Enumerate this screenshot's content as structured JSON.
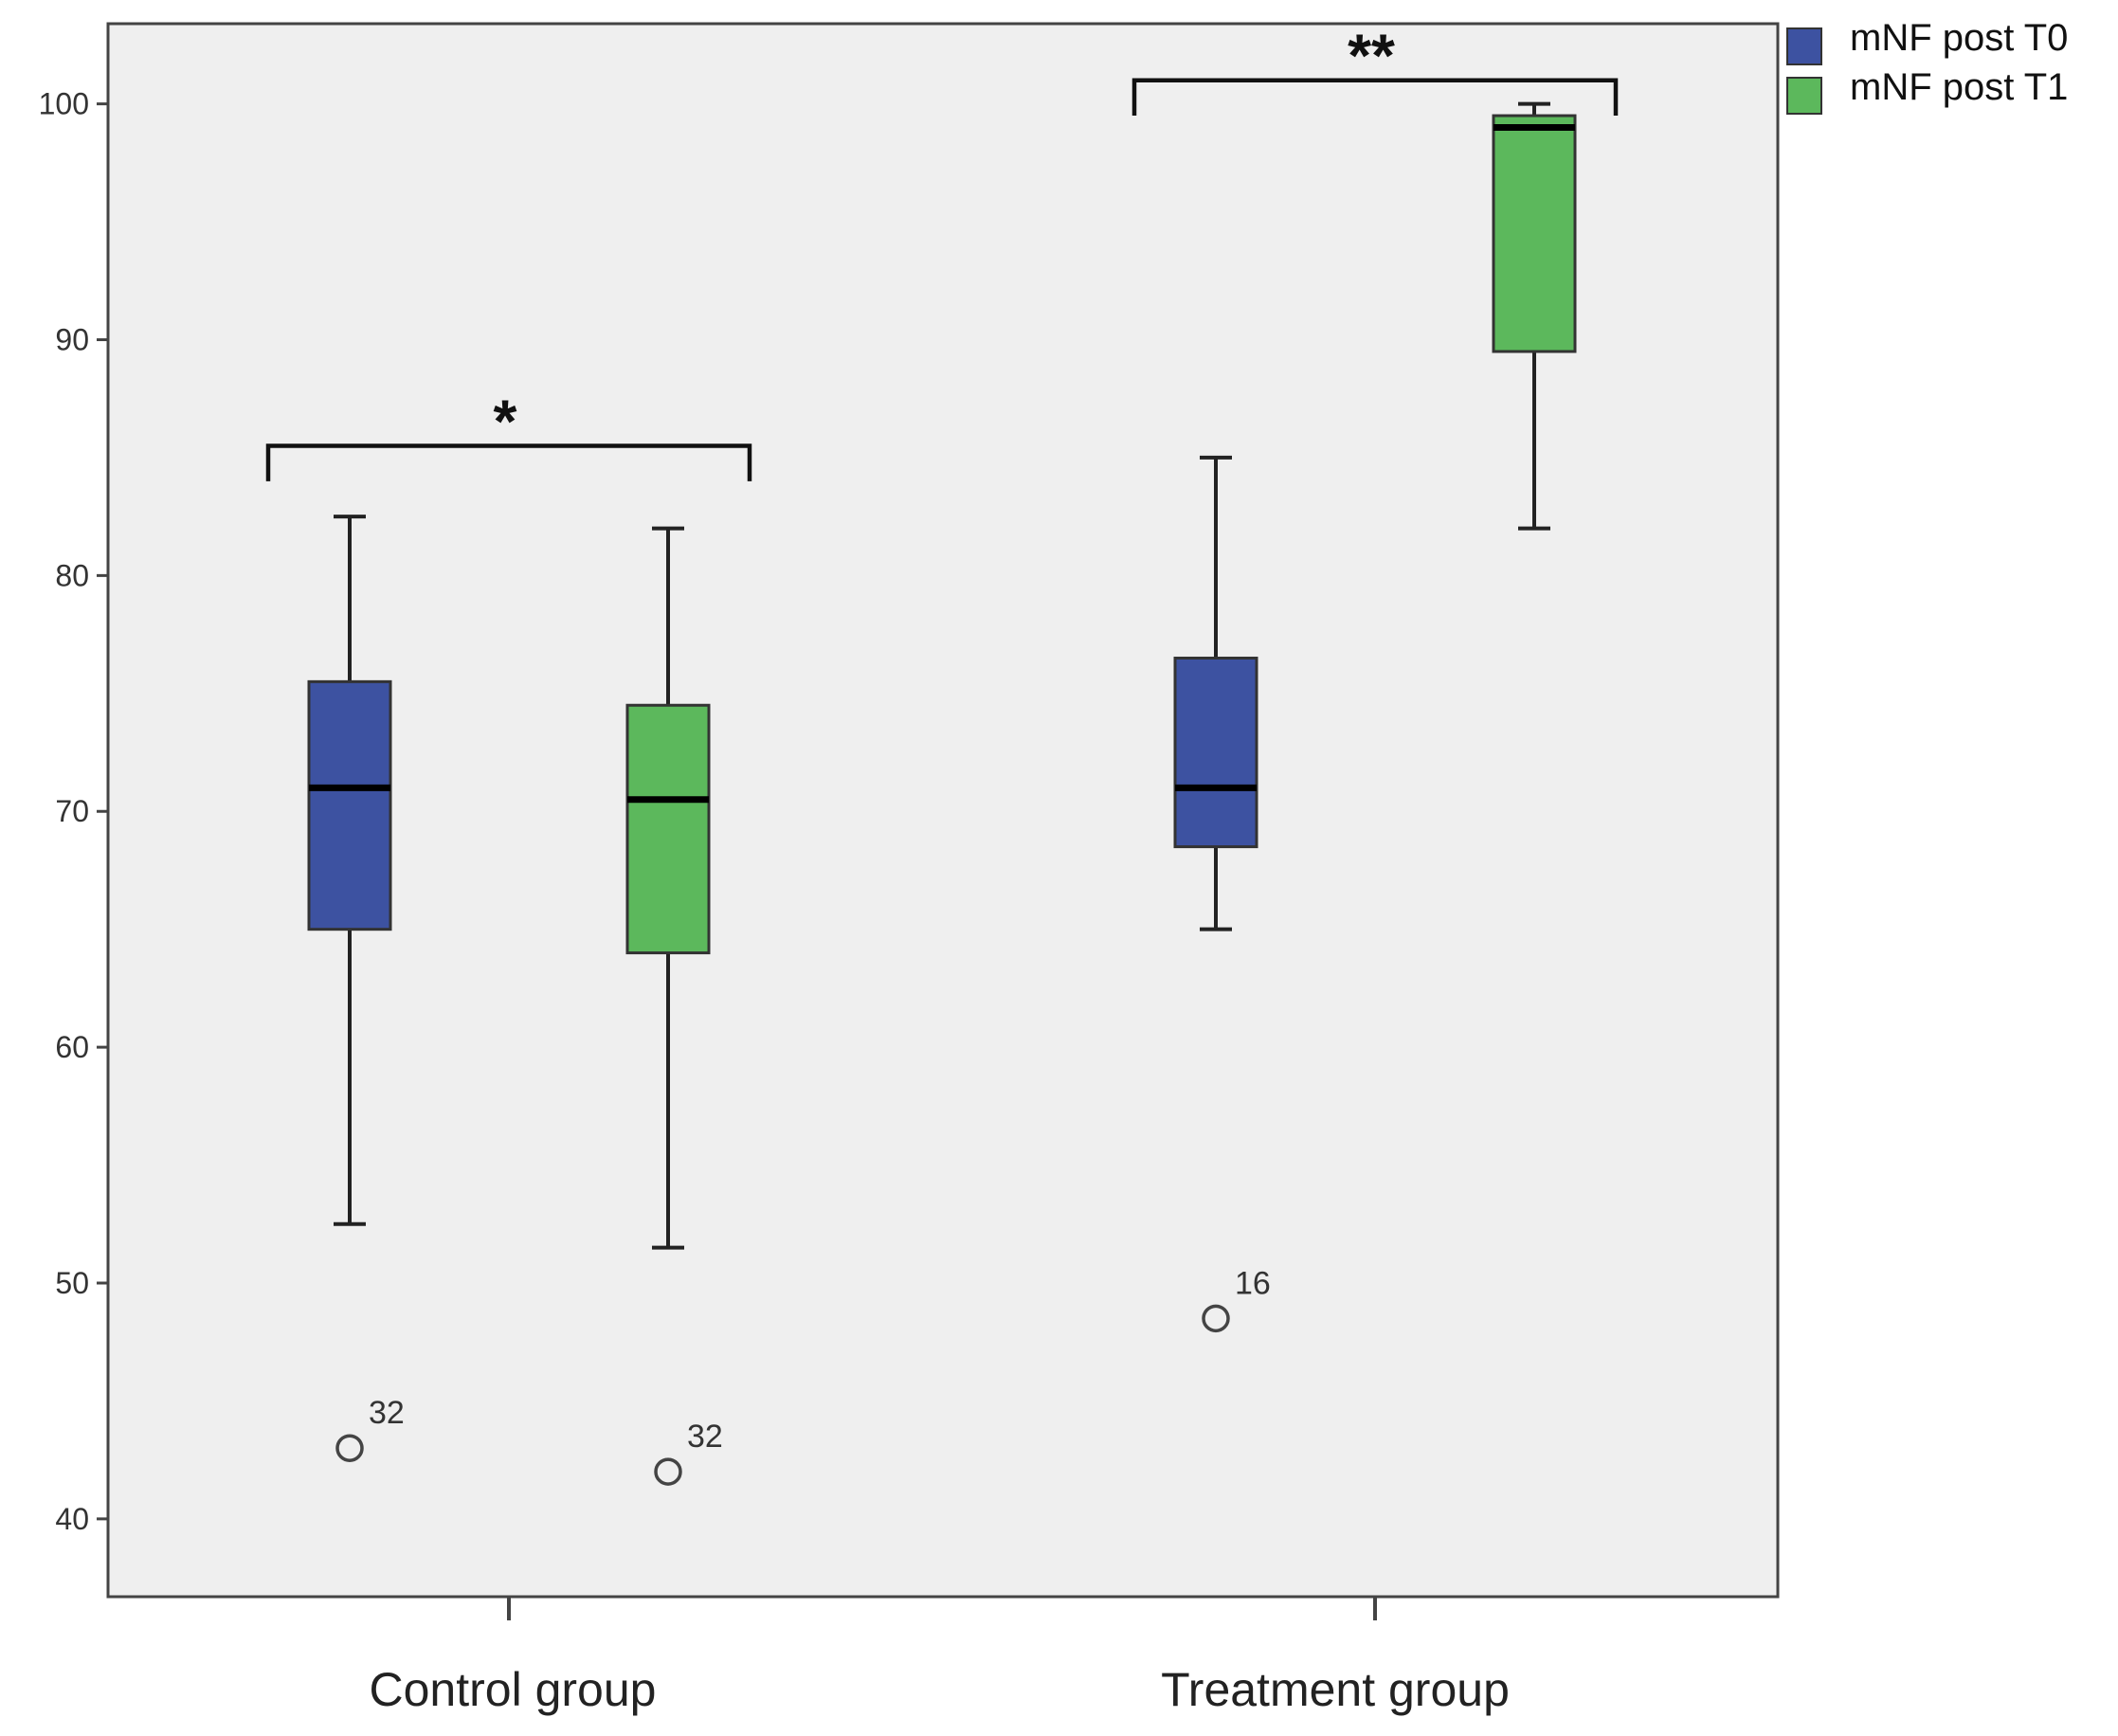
{
  "chart_data": {
    "type": "boxplot",
    "title": "",
    "xlabel": "",
    "ylabel": "",
    "ylim": [
      36.7,
      103.4
    ],
    "yticks": [
      40,
      50,
      60,
      70,
      80,
      90,
      100
    ],
    "grid": false,
    "legend_position": "outside-top-right",
    "categories": [
      "Control group",
      "Treatment group"
    ],
    "series": [
      {
        "name": "mNF post T0",
        "color": "#3d52a1",
        "boxes": [
          {
            "category": "Control group",
            "whisker_low": 52.5,
            "q1": 65,
            "median": 71,
            "q3": 75.5,
            "whisker_high": 82.5,
            "outliers": [
              {
                "value": 43,
                "label": "32"
              }
            ]
          },
          {
            "category": "Treatment group",
            "whisker_low": 65,
            "q1": 68.5,
            "median": 71,
            "q3": 76.5,
            "whisker_high": 85,
            "outliers": [
              {
                "value": 48.5,
                "label": "16"
              }
            ]
          }
        ]
      },
      {
        "name": "mNF post T1",
        "color": "#5cb85c",
        "boxes": [
          {
            "category": "Control group",
            "whisker_low": 51.5,
            "q1": 64,
            "median": 70.5,
            "q3": 74.5,
            "whisker_high": 82,
            "outliers": [
              {
                "value": 42,
                "label": "32"
              }
            ]
          },
          {
            "category": "Treatment group",
            "whisker_low": 82,
            "q1": 89.5,
            "median": 99,
            "q3": 99.5,
            "whisker_high": 100,
            "outliers": []
          }
        ]
      }
    ],
    "significance": [
      {
        "category": "Control group",
        "label": "*",
        "bracket_value": 85.5,
        "tip_value": 84
      },
      {
        "category": "Treatment group",
        "label": "**",
        "bracket_value": 101,
        "tip_value": 99.5
      }
    ]
  }
}
